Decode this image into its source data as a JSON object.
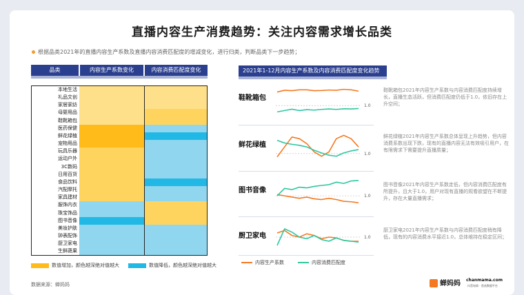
{
  "title": "直播内容生产消费趋势：关注内容需求增长品类",
  "subtitle": "根据品类2021年的直播内容生产系数及直播内容消费匹配度的增减变化，进行归类，判断品类下一步趋势；",
  "table": {
    "headers": [
      "品类",
      "内容生产系数变化",
      "内容消费匹配度变化"
    ],
    "categories": [
      "本地生活",
      "礼品文创",
      "家居家纺",
      "母婴用品",
      "鞋靴箱包",
      "医药保健",
      "鲜花绿植",
      "宠物用品",
      "玩具乐器",
      "运动户外",
      "3C数码",
      "日用百货",
      "食品饮料",
      "汽配摩托",
      "家具建材",
      "服饰内衣",
      "珠宝饰品",
      "图书音像",
      "美妆护肤",
      "钟表配饰",
      "厨卫家电",
      "生鲜蔬果"
    ],
    "production_change": [
      "inc-light",
      "inc-light",
      "inc-light",
      "inc-light",
      "inc-light",
      "inc-strong",
      "inc-strong",
      "inc-strong",
      "inc-mid",
      "inc-mid",
      "inc-mid",
      "inc-mid",
      "inc-mid",
      "inc-mid",
      "inc-mid",
      "dec-light",
      "dec-light",
      "dec-mid",
      "dec-light",
      "dec-light",
      "dec-light",
      "dec-light"
    ],
    "consumption_change": [
      "inc-light",
      "inc-light",
      "inc-light",
      "inc-mid",
      "inc-mid",
      "dec-light",
      "dec-mid",
      "dec-light",
      "dec-light",
      "dec-light",
      "dec-light",
      "dec-light",
      "dec-mid",
      "dec-light",
      "dec-light",
      "inc-mid",
      "inc-mid",
      "inc-mid",
      "dec-light",
      "dec-light",
      "dec-light",
      "dec-light"
    ]
  },
  "colors": {
    "inc-light": "#ffe08a",
    "inc-mid": "#ffd45e",
    "inc-strong": "#ffbb1a",
    "dec-light": "#8fd6ee",
    "dec-mid": "#22b8e6",
    "production_line": "#f47920",
    "consumption_line": "#2cc6a0"
  },
  "legend": {
    "increase": "数值增加，颜色越深绝对值越大",
    "decrease": "数值降低，颜色越深绝对值越大"
  },
  "source": "数据来源：蝉妈妈",
  "right_header": "2021年1-12月内容生产系数及内容消费匹配度变化趋势",
  "line_legend": {
    "production": "内容生产系数",
    "consumption": "内容消费匹配度"
  },
  "ref_label": "1.0",
  "charts": [
    {
      "title": "鞋靴箱包",
      "desc": "鞋靴箱包2021年内容生产系数与内容消费匹配度持续增长，直播生态活跃，但消费匹配度仍低于1.0，依旧存在上升空间；",
      "production": [
        1.6,
        1.68,
        1.66,
        1.7,
        1.7,
        1.66,
        1.67,
        1.69,
        1.68,
        1.72,
        1.7,
        1.64
      ],
      "consumption": [
        0.72,
        0.78,
        0.84,
        0.78,
        0.82,
        0.8,
        0.83,
        0.85,
        0.83,
        0.86,
        0.85,
        0.87
      ]
    },
    {
      "title": "鲜花绿植",
      "desc": "鲜花绿植2021年内容生产系数总体呈现上升趋势，但内容消费系数出现下跌，现有的直播内容无法有效吸引用户，在有限需求下需要提升直播质量；",
      "production": [
        0.9,
        1.2,
        1.5,
        1.45,
        1.3,
        1.05,
        0.92,
        1.05,
        1.45,
        1.55,
        1.45,
        1.2
      ],
      "consumption": [
        1.4,
        1.32,
        1.28,
        1.25,
        1.2,
        1.1,
        1.02,
        0.95,
        0.92,
        1.02,
        1.08,
        1.12
      ]
    },
    {
      "title": "图书音像",
      "desc": "图书音像2021年内容生产系数走低，但内容消费匹配度有所提升，且大于1.0，用户对现有直播的观看欲望在不断提升，存在大量直播需求；",
      "production": [
        1.05,
        1.0,
        0.95,
        0.9,
        0.95,
        0.88,
        0.85,
        0.9,
        0.85,
        0.78,
        0.76,
        0.72
      ],
      "consumption": [
        1.0,
        1.3,
        1.25,
        1.35,
        1.32,
        1.38,
        1.42,
        1.45,
        1.55,
        1.5,
        1.6,
        1.62
      ]
    },
    {
      "title": "厨卫家电",
      "desc": "厨卫家电2021年内容生产系数与内容消费匹配度稍有降低，现有的内容消费水平接近1.0，总体维持在稳定区间；",
      "production": [
        1.05,
        1.08,
        1.02,
        1.0,
        1.04,
        1.02,
        0.98,
        1.0,
        0.99,
        0.96,
        0.95,
        0.95
      ],
      "consumption": [
        0.9,
        1.1,
        1.06,
        1.0,
        0.98,
        1.02,
        0.97,
        0.95,
        0.99,
        0.96,
        0.95,
        0.94
      ]
    }
  ],
  "logo_text": "蝉妈妈",
  "brand_text": "chanmama.com",
  "brand_sub": "抖音电商 · 首选数据平台"
}
